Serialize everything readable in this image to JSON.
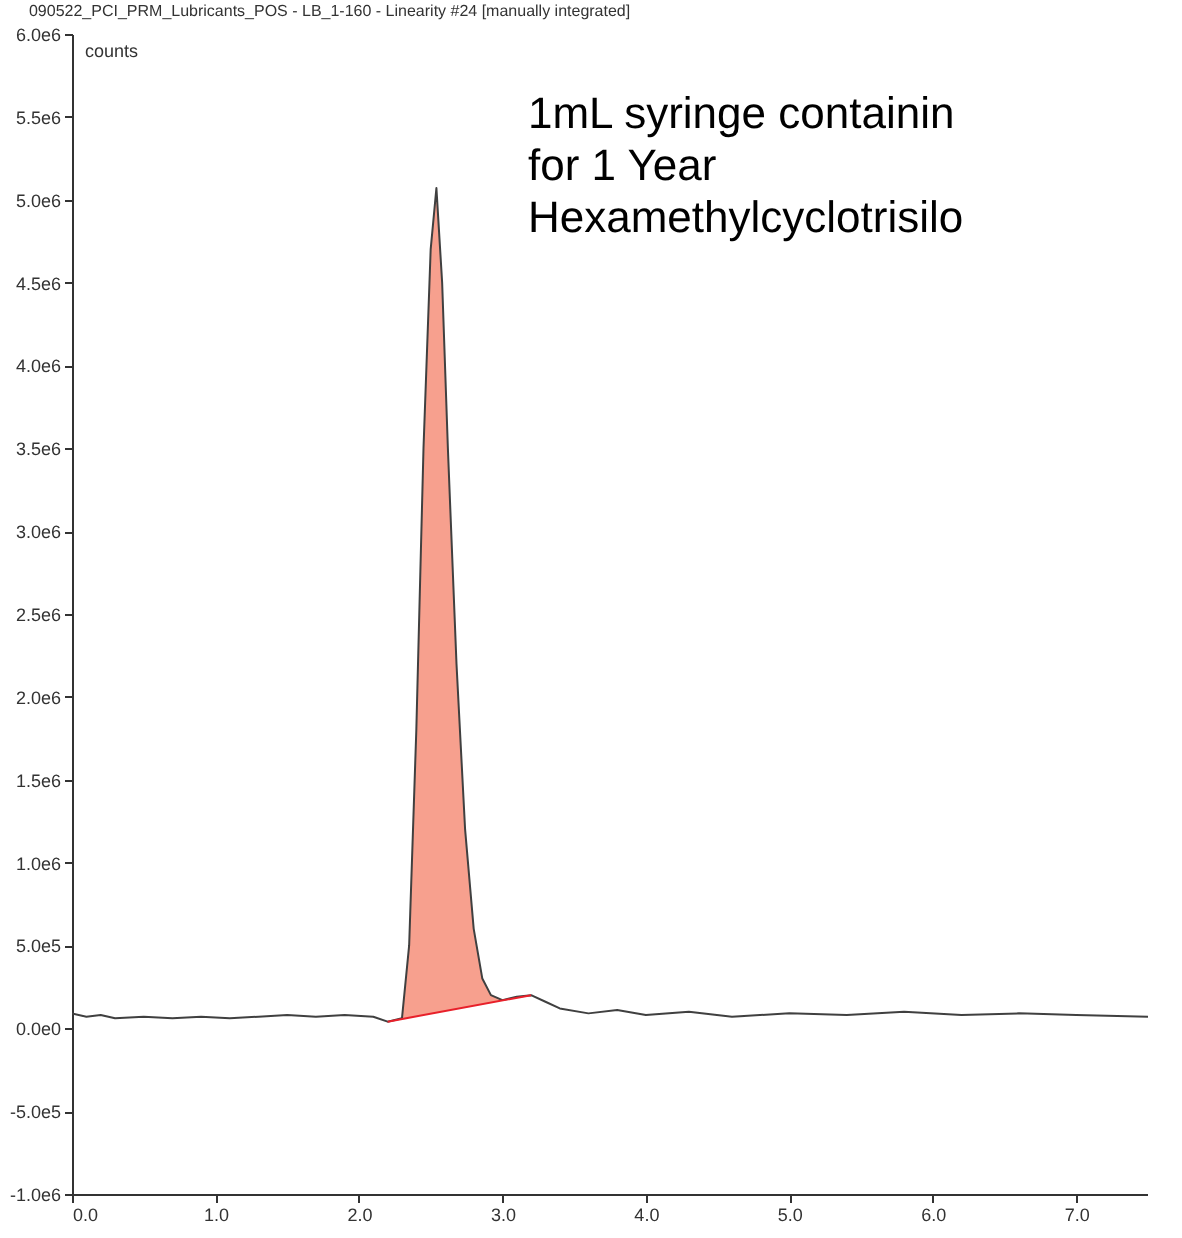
{
  "chart_data": {
    "type": "line",
    "title": "090522_PCI_PRM_Lubricants_POS - LB_1-160 - Linearity #24 [manually integrated]",
    "ylabel": "counts",
    "annotations": [
      "1mL syringe containin",
      "for 1 Year",
      "Hexamethylcyclotrisilo"
    ],
    "xlim": [
      0,
      7.5
    ],
    "xticks": [
      {
        "value": 0,
        "label": "0.0"
      },
      {
        "value": 1,
        "label": "1.0"
      },
      {
        "value": 2,
        "label": "2.0"
      },
      {
        "value": 3,
        "label": "3.0"
      },
      {
        "value": 4,
        "label": "4.0"
      },
      {
        "value": 5,
        "label": "5.0"
      },
      {
        "value": 6,
        "label": "6.0"
      },
      {
        "value": 7,
        "label": "7.0"
      }
    ],
    "ylim": [
      -1000000,
      6000000
    ],
    "yticks": [
      {
        "value": -1000000,
        "label": "-1.0e6"
      },
      {
        "value": -500000,
        "label": "-5.0e5"
      },
      {
        "value": 0,
        "label": "0.0e0"
      },
      {
        "value": 500000,
        "label": "5.0e5"
      },
      {
        "value": 1000000,
        "label": "1.0e6"
      },
      {
        "value": 1500000,
        "label": "1.5e6"
      },
      {
        "value": 2000000,
        "label": "2.0e6"
      },
      {
        "value": 2500000,
        "label": "2.5e6"
      },
      {
        "value": 3000000,
        "label": "3.0e6"
      },
      {
        "value": 3500000,
        "label": "3.5e6"
      },
      {
        "value": 4000000,
        "label": "4.0e6"
      },
      {
        "value": 4500000,
        "label": "4.5e6"
      },
      {
        "value": 5000000,
        "label": "5.0e6"
      },
      {
        "value": 5500000,
        "label": "5.5e6"
      },
      {
        "value": 6000000,
        "label": "6.0e6"
      }
    ],
    "grid": false,
    "series": [
      {
        "color": "#404040",
        "x": [
          0,
          0.1,
          0.2,
          0.3,
          0.5,
          0.7,
          0.9,
          1.1,
          1.3,
          1.5,
          1.7,
          1.9,
          2.1,
          2.2,
          2.3,
          2.35,
          2.4,
          2.45,
          2.5,
          2.54,
          2.58,
          2.62,
          2.68,
          2.74,
          2.8,
          2.86,
          2.92,
          3.0,
          3.1,
          3.2,
          3.3,
          3.4,
          3.6,
          3.8,
          4.0,
          4.3,
          4.6,
          5.0,
          5.4,
          5.8,
          6.2,
          6.6,
          7.0,
          7.5
        ],
        "values": [
          90000,
          70000,
          80000,
          60000,
          70000,
          60000,
          70000,
          60000,
          70000,
          80000,
          70000,
          80000,
          70000,
          40000,
          60000,
          500000,
          1800000,
          3500000,
          4700000,
          5070000,
          4500000,
          3500000,
          2200000,
          1200000,
          600000,
          300000,
          200000,
          170000,
          190000,
          200000,
          160000,
          120000,
          90000,
          110000,
          80000,
          100000,
          70000,
          90000,
          80000,
          100000,
          80000,
          90000,
          80000,
          70000
        ],
        "lower": [
          null,
          null,
          null,
          null,
          null,
          null,
          null,
          null,
          null,
          null,
          null,
          null,
          null,
          40000,
          56000,
          64000,
          72000,
          80000,
          88000,
          94400,
          100800,
          107200,
          116800,
          126400,
          136000,
          145600,
          155200,
          168000,
          184000,
          200000,
          null,
          null,
          null,
          null,
          null,
          null,
          null,
          null,
          null,
          null,
          null,
          null,
          null,
          null
        ],
        "upper": [
          null,
          null,
          null,
          null,
          null,
          null,
          null,
          null,
          null,
          null,
          null,
          null,
          null,
          40000,
          60000,
          500000,
          1800000,
          3500000,
          4700000,
          5070000,
          4500000,
          3500000,
          2200000,
          1200000,
          600000,
          300000,
          200000,
          170000,
          190000,
          200000,
          null,
          null,
          null,
          null,
          null,
          null,
          null,
          null,
          null,
          null,
          null,
          null,
          null,
          null
        ]
      },
      {
        "type": "line",
        "color": "#e8202a",
        "x": [
          2.2,
          3.2
        ],
        "values": [
          40000,
          200000
        ]
      }
    ]
  }
}
